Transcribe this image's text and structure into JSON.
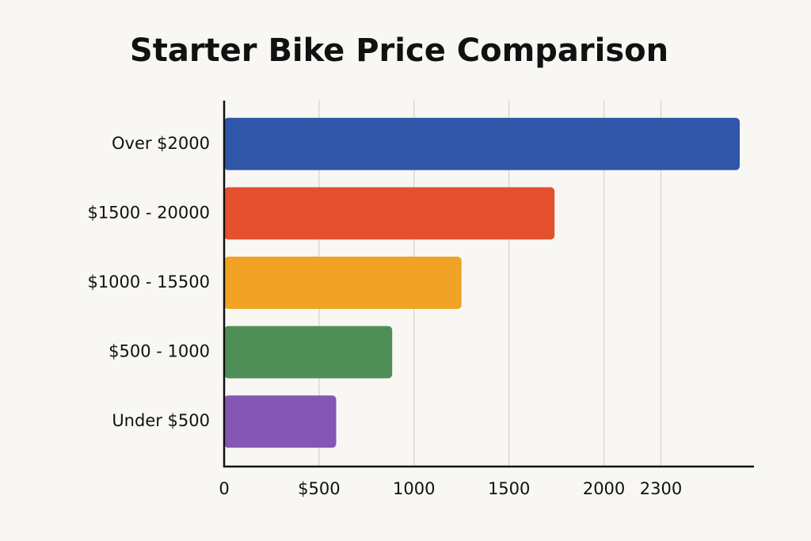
{
  "chart_data": {
    "type": "bar",
    "orientation": "horizontal",
    "title": "Starter Bike Price Comparison",
    "categories": [
      "Over $2000",
      "$1500 - 20000",
      "$1000 - 15500",
      "$500 - 1000",
      "Under $500"
    ],
    "values": [
      2715,
      1740,
      1250,
      885,
      590
    ],
    "colors": [
      "#2f56a8",
      "#e4502d",
      "#f0a324",
      "#4e8f57",
      "#8457b5"
    ],
    "xlim": [
      0,
      2790
    ],
    "xticks": [
      0,
      {
        "value": 500,
        "label": "$500"
      },
      1000,
      1500,
      2000,
      2300
    ],
    "grid": true
  }
}
